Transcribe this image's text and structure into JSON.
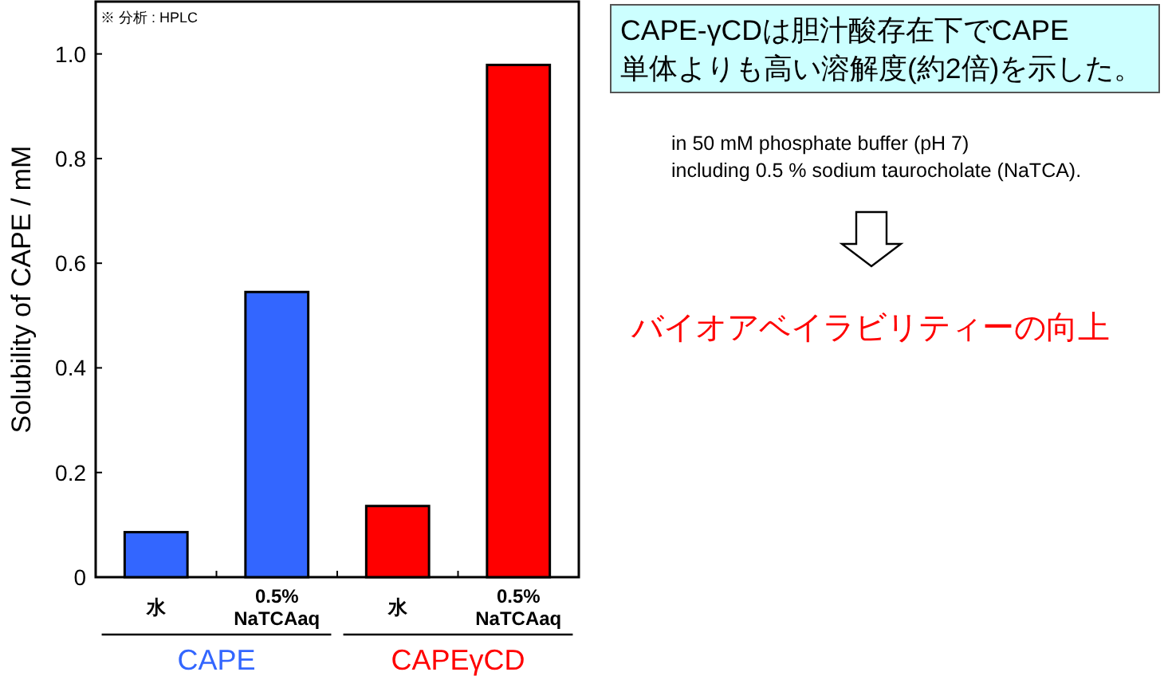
{
  "chart_data": {
    "type": "bar",
    "ylabel": "Solubility of CAPE / mM",
    "categories": [
      "水",
      "0.5%\nNaTCAaq",
      "水",
      "0.5%\nNaTCAaq"
    ],
    "series": [
      {
        "name": "CAPE",
        "color": "#3366ff",
        "values": [
          0.086,
          0.545,
          null,
          null
        ]
      },
      {
        "name": "CAPEγCD",
        "color": "#ff0000",
        "values": [
          null,
          null,
          0.136,
          0.979
        ]
      }
    ],
    "ylim": [
      0,
      1.1
    ],
    "yticks": [
      0,
      0.2,
      0.4,
      0.6,
      0.8,
      {
        "value": 1,
        "label": "1.0"
      }
    ],
    "annotations": [
      "※ 分析 : HPLC",
      "CAPE-γCDは胆汁酸存在下でCAPE\n単体よりも高い溶解度(約2倍)を示した。",
      "in 50 mM phosphate buffer (pH 7)\nincluding 0.5 % sodium taurocholate (NaTCA).",
      "バイオアベイラビリティーの向上"
    ]
  }
}
